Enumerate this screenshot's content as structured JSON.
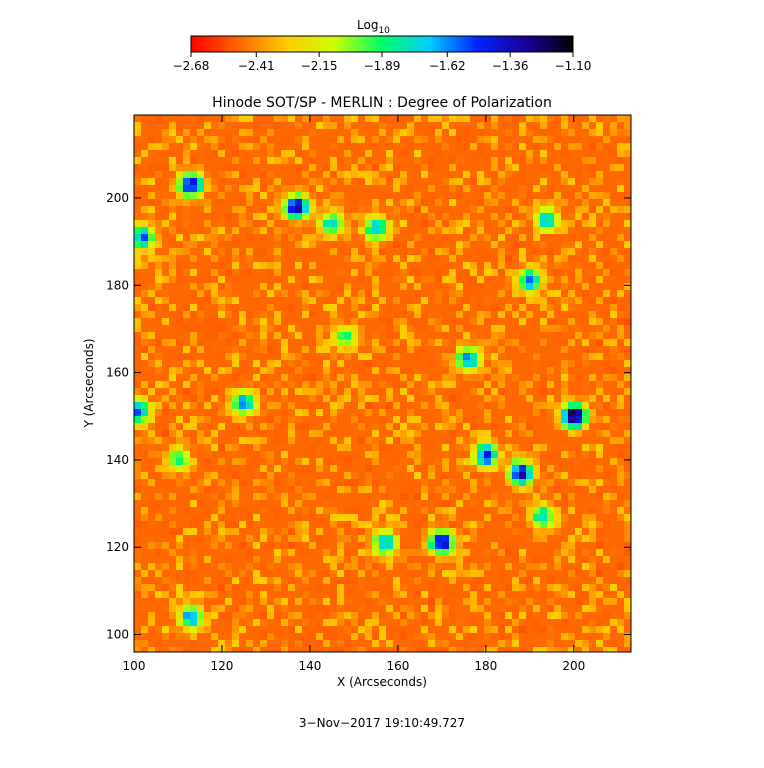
{
  "chart_data": {
    "type": "heatmap",
    "title": "Hinode SOT/SP - MERLIN : Degree of Polarization",
    "xlabel": "X (Arcseconds)",
    "ylabel": "Y (Arcseconds)",
    "xlim": [
      100,
      213
    ],
    "ylim": [
      96,
      219
    ],
    "x_ticks": [
      100,
      120,
      140,
      160,
      180,
      200
    ],
    "y_ticks": [
      100,
      120,
      140,
      160,
      180,
      200
    ],
    "x_tick_labels": [
      "100",
      "120",
      "140",
      "160",
      "180",
      "200"
    ],
    "y_tick_labels": [
      "100",
      "120",
      "140",
      "160",
      "180",
      "200"
    ],
    "colorbar": {
      "label_main": "Log",
      "label_sub": "10",
      "range": [
        -2.68,
        -1.1
      ],
      "ticks": [
        -2.68,
        -2.41,
        -2.15,
        -1.89,
        -1.62,
        -1.36,
        -1.1
      ],
      "tick_labels": [
        "−2.68",
        "−2.41",
        "−2.15",
        "−1.89",
        "−1.62",
        "−1.36",
        "−1.10"
      ],
      "colormap": [
        "#ff0000",
        "#ff6600",
        "#ffcc00",
        "#ccff00",
        "#00ff66",
        "#00ccff",
        "#0022ff",
        "#1a0099",
        "#000000"
      ]
    },
    "background_log10": -2.55,
    "strong_polarization_regions": [
      {
        "x": 113,
        "y": 203,
        "value": -1.35
      },
      {
        "x": 102,
        "y": 191,
        "value": -1.55
      },
      {
        "x": 137,
        "y": 198,
        "value": -1.3
      },
      {
        "x": 145,
        "y": 194,
        "value": -1.7
      },
      {
        "x": 155,
        "y": 193,
        "value": -1.65
      },
      {
        "x": 190,
        "y": 181,
        "value": -1.6
      },
      {
        "x": 200,
        "y": 150,
        "value": -1.12
      },
      {
        "x": 188,
        "y": 137,
        "value": -1.3
      },
      {
        "x": 180,
        "y": 141,
        "value": -1.45
      },
      {
        "x": 176,
        "y": 163,
        "value": -1.6
      },
      {
        "x": 170,
        "y": 121,
        "value": -1.35
      },
      {
        "x": 157,
        "y": 121,
        "value": -1.65
      },
      {
        "x": 125,
        "y": 153,
        "value": -1.6
      },
      {
        "x": 113,
        "y": 104,
        "value": -1.6
      },
      {
        "x": 101,
        "y": 151,
        "value": -1.55
      },
      {
        "x": 194,
        "y": 195,
        "value": -1.7
      },
      {
        "x": 193,
        "y": 127,
        "value": -1.75
      },
      {
        "x": 110,
        "y": 140,
        "value": -1.85
      },
      {
        "x": 148,
        "y": 168,
        "value": -1.85
      }
    ]
  },
  "timestamp": "3−Nov−2017 19:10:49.727"
}
